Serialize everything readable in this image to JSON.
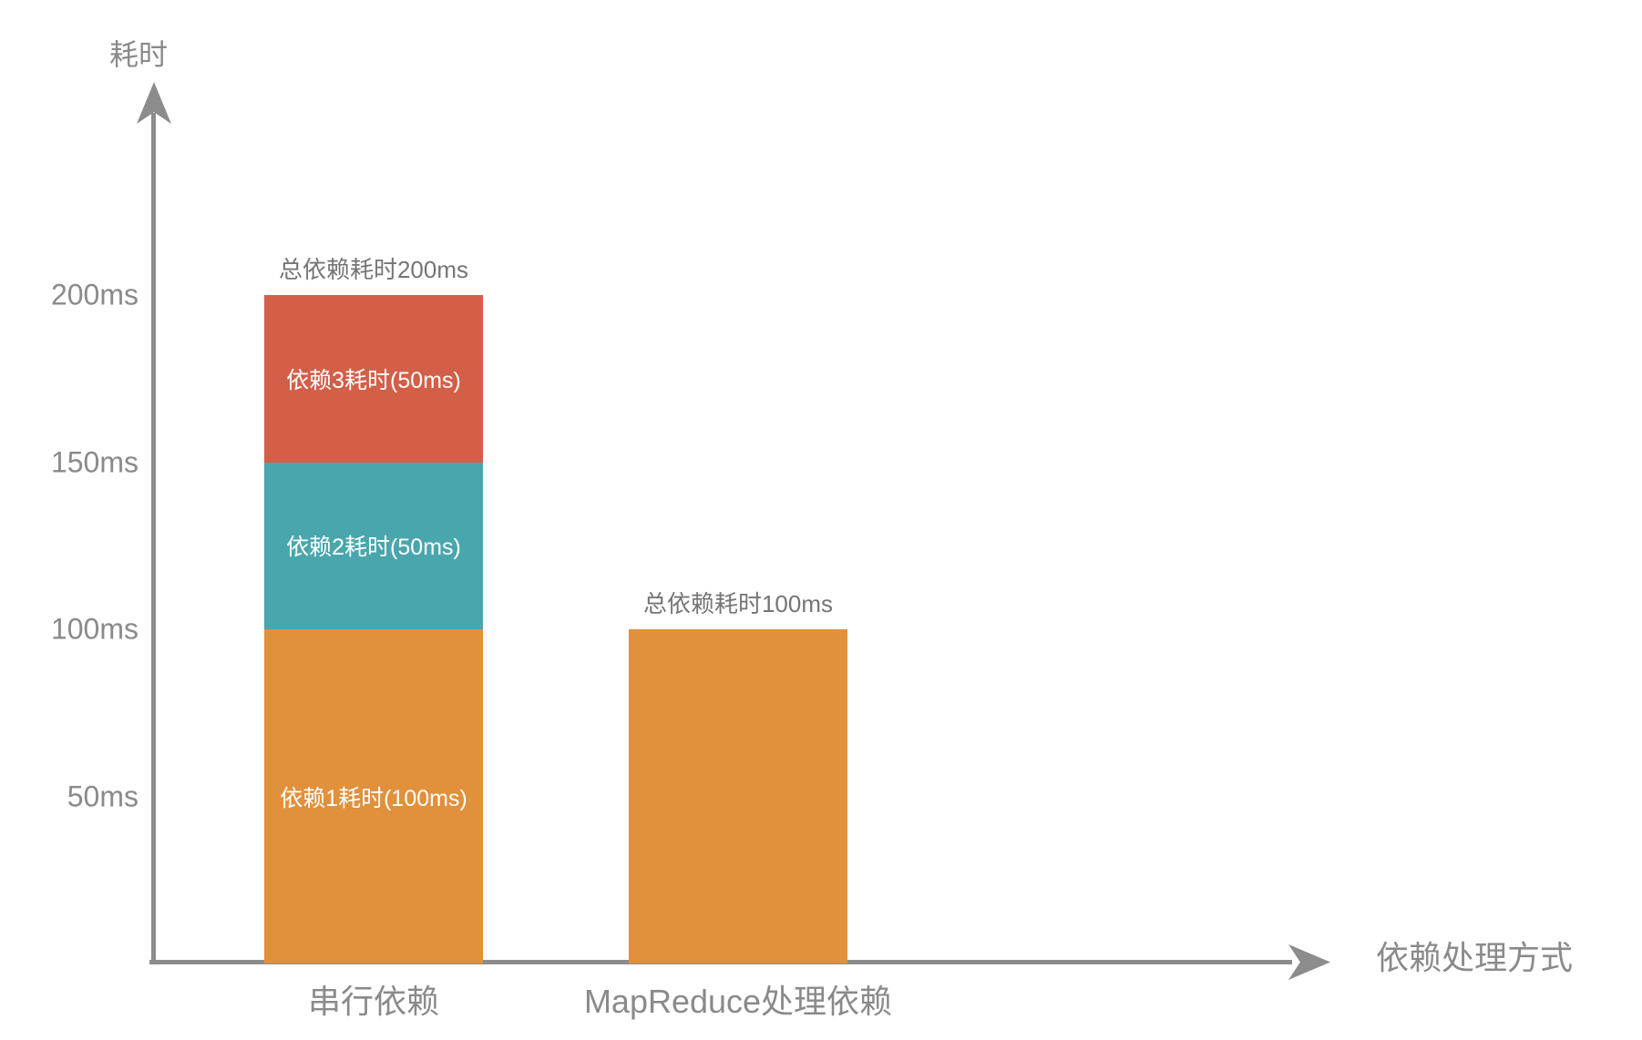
{
  "chart_data": {
    "type": "bar",
    "stacked": true,
    "title": "",
    "ylabel": "耗时",
    "xlabel": "依赖处理方式",
    "value_unit": "ms",
    "ylim": [
      0,
      230
    ],
    "grid": false,
    "legend": "none",
    "yticks": [
      {
        "value": 50,
        "label": "50ms"
      },
      {
        "value": 100,
        "label": "100ms"
      },
      {
        "value": 150,
        "label": "150ms"
      },
      {
        "value": 200,
        "label": "200ms"
      }
    ],
    "categories": [
      "串行依赖",
      "MapReduce处理依赖"
    ],
    "bars": [
      {
        "category": "串行依赖",
        "total_ms": 200,
        "annotation": "总依赖耗时200ms",
        "segments": [
          {
            "label": "依赖1耗时(100ms)",
            "value_ms": 100,
            "color": "#E1903B"
          },
          {
            "label": "依赖2耗时(50ms)",
            "value_ms": 50,
            "color": "#4AA6AD"
          },
          {
            "label": "依赖3耗时(50ms)",
            "value_ms": 50,
            "color": "#D35F49"
          }
        ]
      },
      {
        "category": "MapReduce处理依赖",
        "total_ms": 100,
        "annotation": "总依赖耗时100ms",
        "segments": [
          {
            "label": "",
            "value_ms": 100,
            "color": "#E1903B"
          }
        ]
      }
    ],
    "colors": {
      "axis": "#8C8C8C",
      "tick_text": "#8A8A8A",
      "annotation_text": "#757575",
      "segment_text": "#FFFFFF",
      "background": "#FFFFFF"
    }
  }
}
